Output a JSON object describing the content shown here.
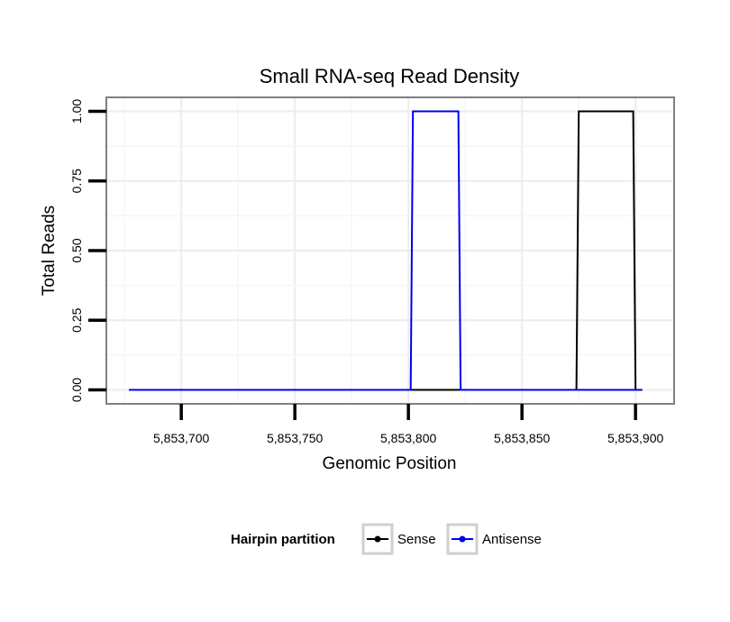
{
  "chart_data": {
    "type": "line",
    "title": "Small RNA-seq Read Density",
    "xlabel": "Genomic Position",
    "ylabel": "Total Reads",
    "xlim": [
      5853667,
      5853917
    ],
    "ylim": [
      -0.05,
      1.05
    ],
    "x_ticks": [
      5853700,
      5853750,
      5853800,
      5853850,
      5853900
    ],
    "x_tick_labels": [
      "5,853,700",
      "5,853,750",
      "5,853,800",
      "5,853,850",
      "5,853,900"
    ],
    "y_ticks": [
      0.0,
      0.25,
      0.5,
      0.75,
      1.0
    ],
    "y_tick_labels": [
      "0.00",
      "0.25",
      "0.50",
      "0.75",
      "1.00"
    ],
    "grid": true,
    "legend": {
      "title": "Hairpin partition",
      "position": "bottom",
      "entries": [
        "Sense",
        "Antisense"
      ]
    },
    "series": [
      {
        "name": "Sense",
        "color": "#000000",
        "x": [
          5853677,
          5853874,
          5853875,
          5853899,
          5853900,
          5853903
        ],
        "y": [
          0,
          0,
          1,
          1,
          0,
          0
        ]
      },
      {
        "name": "Antisense",
        "color": "#0000ee",
        "x": [
          5853677,
          5853801,
          5853802,
          5853822,
          5853823,
          5853903
        ],
        "y": [
          0,
          0,
          1,
          1,
          0,
          0
        ]
      }
    ]
  }
}
